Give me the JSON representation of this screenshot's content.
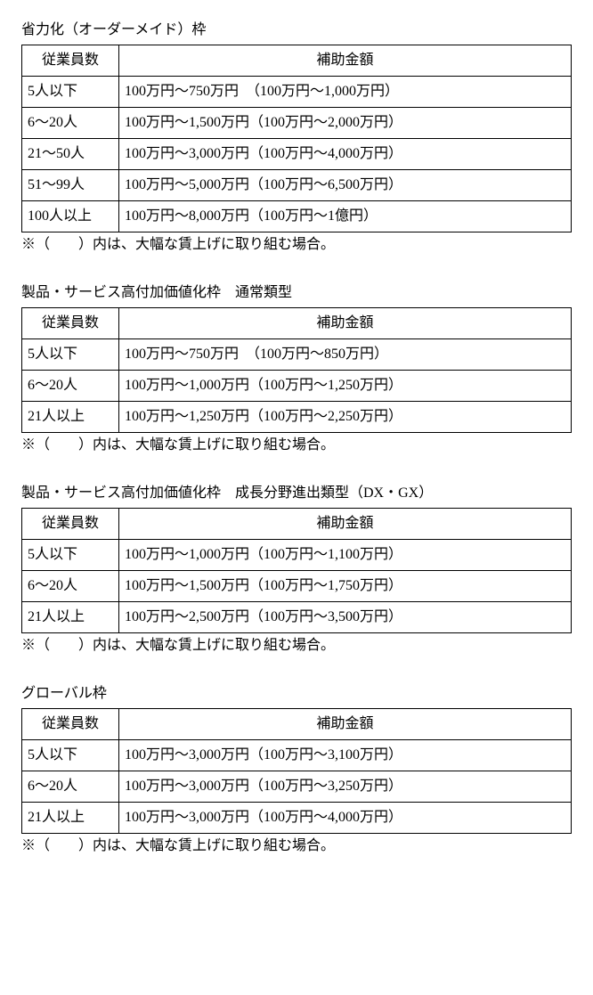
{
  "sections": [
    {
      "title": "省力化（オーダーメイド）枠",
      "header_emp": "従業員数",
      "header_amt": "補助金額",
      "rows": [
        {
          "emp": "5人以下",
          "amt": "100万円～750万円　（100万円～1,000万円）"
        },
        {
          "emp": "6～20人",
          "amt": "100万円～1,500万円（100万円～2,000万円）"
        },
        {
          "emp": "21～50人",
          "amt": "100万円～3,000万円（100万円～4,000万円）"
        },
        {
          "emp": "51～99人",
          "amt": "100万円～5,000万円（100万円～6,500万円）"
        },
        {
          "emp": "100人以上",
          "amt": "100万円～8,000万円（100万円～1億円）"
        }
      ],
      "note": "※（　　）内は、大幅な賃上げに取り組む場合。"
    },
    {
      "title": "製品・サービス高付加価値化枠　通常類型",
      "header_emp": "従業員数",
      "header_amt": "補助金額",
      "rows": [
        {
          "emp": "5人以下",
          "amt": "100万円～750万円　（100万円～850万円）"
        },
        {
          "emp": "6～20人",
          "amt": "100万円～1,000万円（100万円～1,250万円）"
        },
        {
          "emp": "21人以上",
          "amt": "100万円～1,250万円（100万円～2,250万円）"
        }
      ],
      "note": "※（　　）内は、大幅な賃上げに取り組む場合。"
    },
    {
      "title": "製品・サービス高付加価値化枠　成長分野進出類型（DX・GX）",
      "header_emp": "従業員数",
      "header_amt": "補助金額",
      "rows": [
        {
          "emp": "5人以下",
          "amt": "100万円～1,000万円（100万円～1,100万円）"
        },
        {
          "emp": "6～20人",
          "amt": "100万円～1,500万円（100万円～1,750万円）"
        },
        {
          "emp": "21人以上",
          "amt": "100万円～2,500万円（100万円～3,500万円）"
        }
      ],
      "note": "※（　　）内は、大幅な賃上げに取り組む場合。"
    },
    {
      "title": "グローバル枠",
      "header_emp": "従業員数",
      "header_amt": "補助金額",
      "rows": [
        {
          "emp": "5人以下",
          "amt": "100万円～3,000万円（100万円～3,100万円）"
        },
        {
          "emp": "6～20人",
          "amt": "100万円～3,000万円（100万円～3,250万円）"
        },
        {
          "emp": "21人以上",
          "amt": "100万円～3,000万円（100万円～4,000万円）"
        }
      ],
      "note": "※（　　）内は、大幅な賃上げに取り組む場合。"
    }
  ]
}
